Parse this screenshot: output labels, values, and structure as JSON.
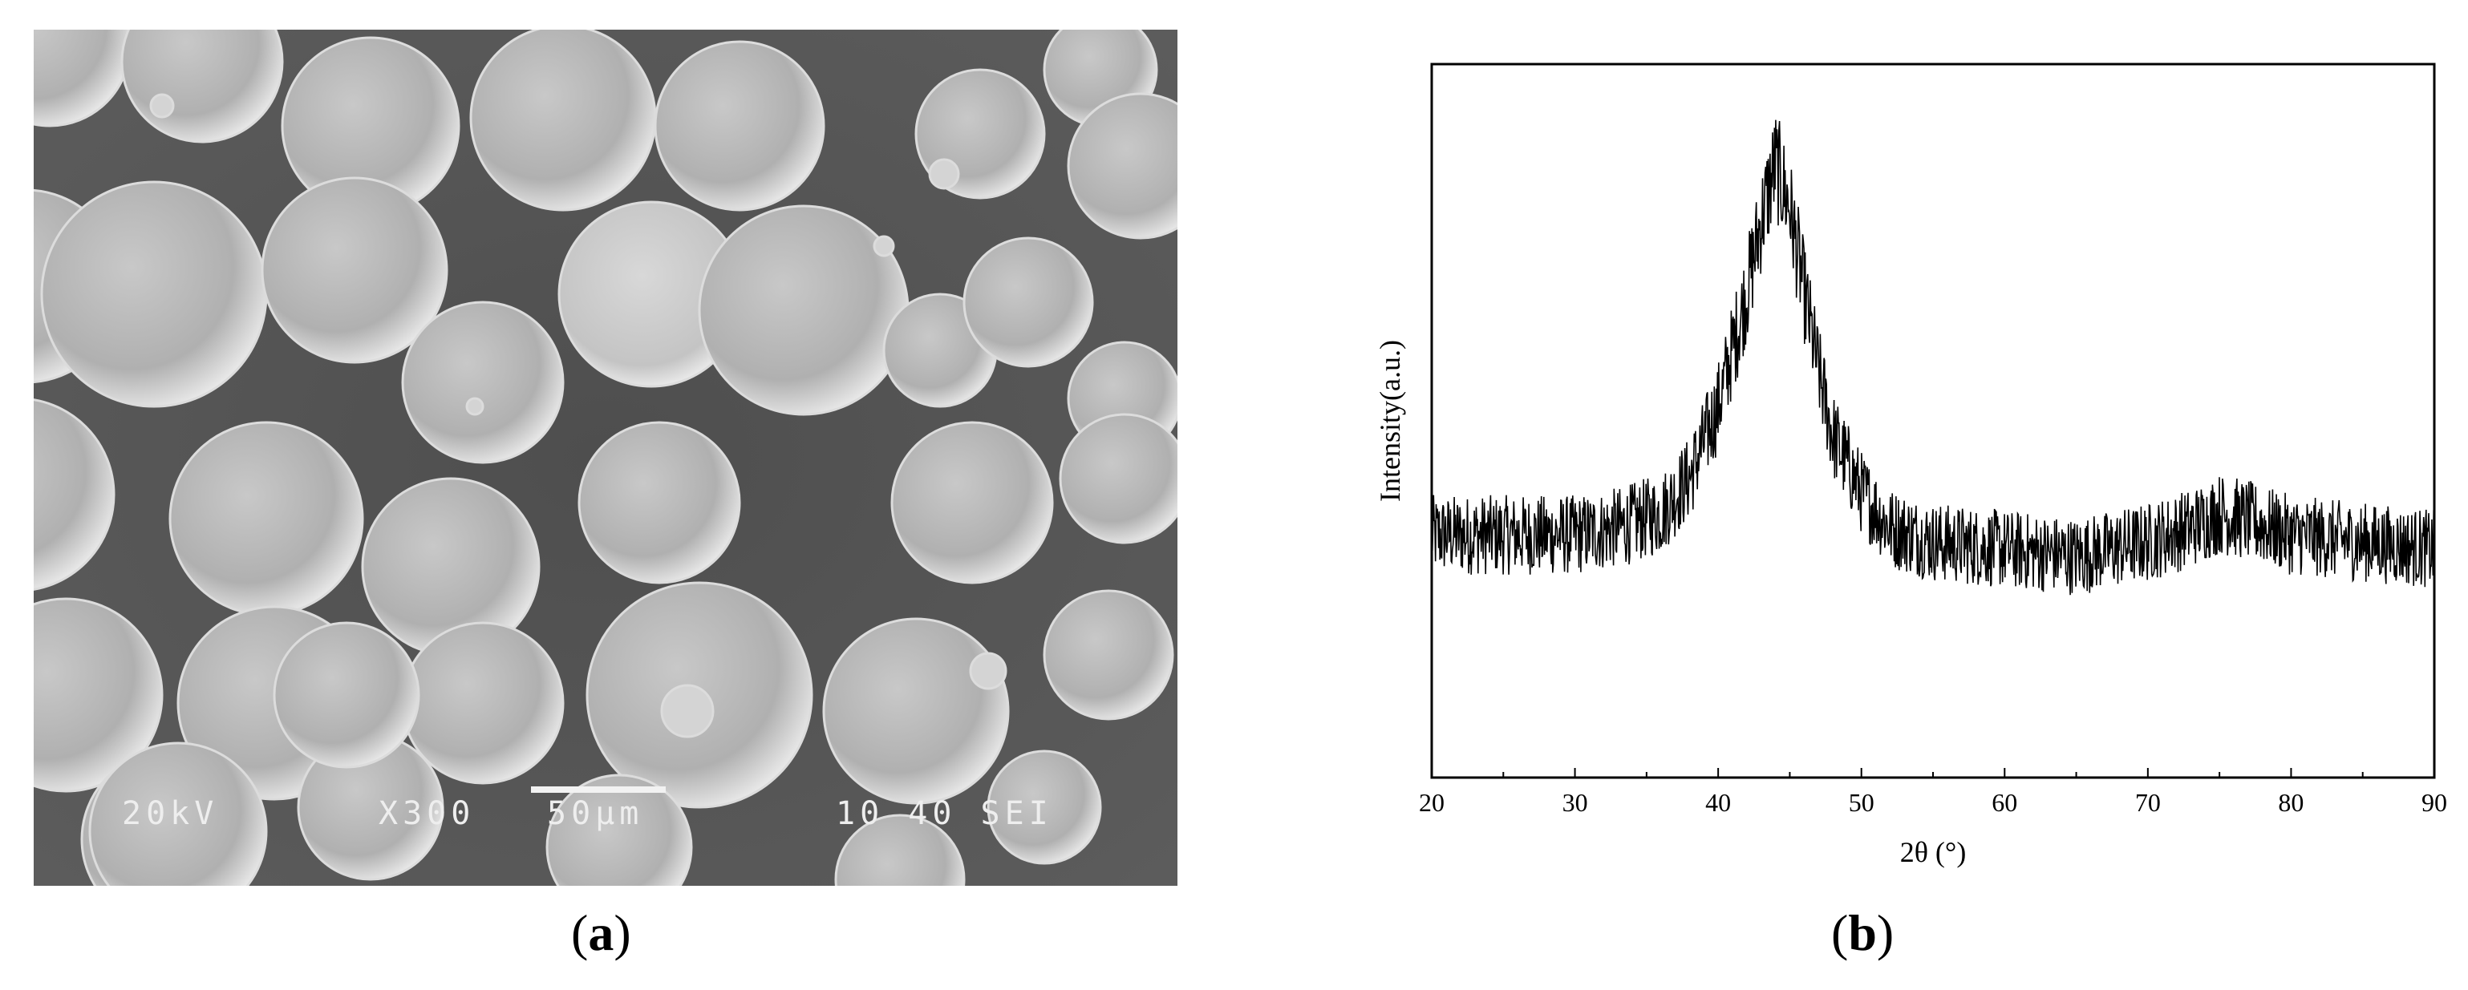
{
  "panel_a": {
    "caption_open": "(",
    "caption_letter": "a",
    "caption_close": ")",
    "sem_labels": {
      "voltage": "20kV",
      "magnification": "X300",
      "scale": "50μm",
      "info": "10 40 SEI"
    }
  },
  "panel_b": {
    "caption_open": "(",
    "caption_letter": "b",
    "caption_close": ")"
  },
  "chart_data": {
    "type": "line",
    "title": "",
    "xlabel": "2θ (°)",
    "ylabel": "Intensity(a.u.)",
    "xlim": [
      20,
      90
    ],
    "x_ticks": [
      "20",
      "30",
      "40",
      "50",
      "60",
      "70",
      "80",
      "90"
    ],
    "y_ticks": [],
    "grid": false,
    "series": [
      {
        "color": "#000000",
        "description_of_shape": [
          [
            20,
            0.34
          ],
          [
            25,
            0.34
          ],
          [
            30,
            0.34
          ],
          [
            33,
            0.35
          ],
          [
            36,
            0.37
          ],
          [
            38,
            0.42
          ],
          [
            40,
            0.52
          ],
          [
            42,
            0.68
          ],
          [
            43,
            0.78
          ],
          [
            44,
            0.86
          ],
          [
            45,
            0.8
          ],
          [
            46,
            0.68
          ],
          [
            47,
            0.57
          ],
          [
            48,
            0.48
          ],
          [
            50,
            0.4
          ],
          [
            52,
            0.35
          ],
          [
            55,
            0.33
          ],
          [
            60,
            0.32
          ],
          [
            65,
            0.31
          ],
          [
            70,
            0.33
          ],
          [
            73,
            0.35
          ],
          [
            75,
            0.37
          ],
          [
            77,
            0.36
          ],
          [
            80,
            0.34
          ],
          [
            85,
            0.33
          ],
          [
            90,
            0.32
          ]
        ],
        "noise_amplitude": 0.07
      }
    ],
    "ylim": [
      0,
      1
    ]
  }
}
